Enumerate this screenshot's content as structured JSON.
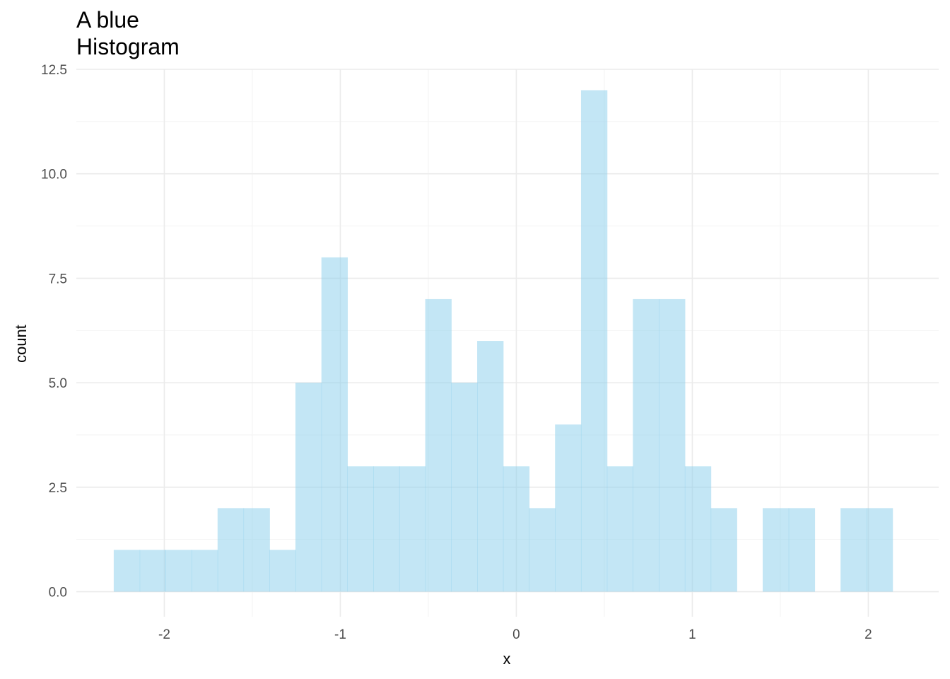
{
  "chart_data": {
    "type": "bar",
    "subtype": "histogram",
    "title_lines": [
      "A blue",
      "Histogram"
    ],
    "xlabel": "x",
    "ylabel": "count",
    "xlim": [
      -2.5,
      2.4
    ],
    "ylim": [
      -0.6,
      12.5
    ],
    "x_ticks": [
      -2,
      -1,
      0,
      1,
      2
    ],
    "x_tick_labels": [
      "-2",
      "-1",
      "0",
      "1",
      "2"
    ],
    "y_ticks": [
      0,
      2.5,
      5,
      7.5,
      10,
      12.5
    ],
    "y_tick_labels": [
      "0.0",
      "2.5",
      "5.0",
      "7.5",
      "10.0",
      "12.5"
    ],
    "bin_width": 0.1475,
    "bin_start": -2.2875,
    "counts": [
      1,
      1,
      1,
      1,
      2,
      2,
      1,
      5,
      8,
      3,
      3,
      3,
      7,
      5,
      6,
      3,
      2,
      4,
      12,
      3,
      7,
      7,
      3,
      2,
      0,
      2,
      2,
      0,
      2,
      2
    ],
    "fill_color": "#87ceeb",
    "fill_opacity": 0.5,
    "grid": true,
    "theme": "minimal"
  }
}
